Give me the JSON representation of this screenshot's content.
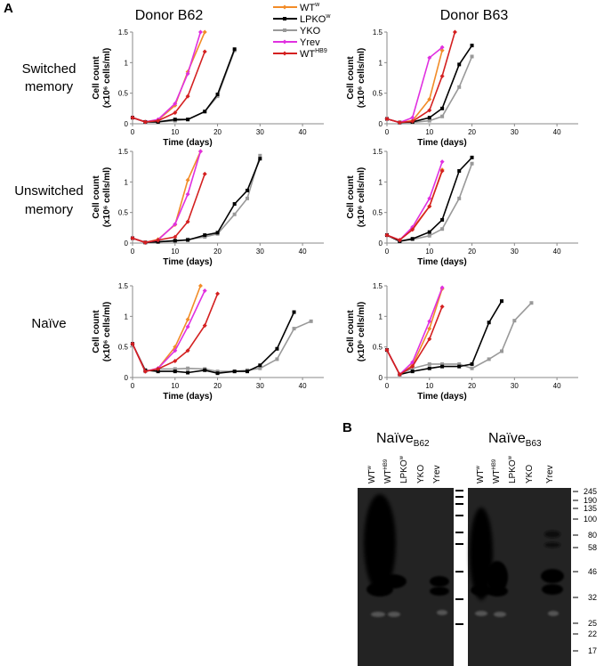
{
  "panel_a_label": "A",
  "panel_b_label": "B",
  "donors": [
    "Donor B62",
    "Donor B63"
  ],
  "row_labels": [
    [
      "Switched",
      "memory"
    ],
    [
      "Unswitched",
      "memory"
    ],
    [
      "Naïve"
    ]
  ],
  "axis": {
    "x_label": "Time (days)",
    "y_label_line1": "Cell count",
    "y_label_line2": "(x10⁶ cells/ml)",
    "x_ticks": [
      "0",
      "10",
      "20",
      "30",
      "40"
    ],
    "y_ticks": [
      "0",
      "0.5",
      "1",
      "1.5"
    ]
  },
  "legend": [
    {
      "base": "WT",
      "sup": "w",
      "color": "#f28c28",
      "marker": "diamond"
    },
    {
      "base": "LPKO",
      "sup": "w",
      "color": "#000000",
      "marker": "square"
    },
    {
      "base": "YKO",
      "sup": "",
      "color": "#999999",
      "marker": "square"
    },
    {
      "base": "Yrev",
      "sup": "",
      "color": "#e030e0",
      "marker": "diamond"
    },
    {
      "base": "WT",
      "sup": "HB9",
      "color": "#d42020",
      "marker": "diamond"
    }
  ],
  "chart_data": [
    {
      "type": "line",
      "title": "Switched memory — Donor B62",
      "xlabel": "Time (days)",
      "ylabel": "Cell count (x10⁶ cells/ml)",
      "xlim": [
        0,
        45
      ],
      "ylim": [
        0,
        1.5
      ],
      "series": [
        {
          "name": "WTw",
          "x": [
            0,
            3,
            6,
            10,
            13,
            17
          ],
          "y": [
            0.1,
            0.03,
            0.06,
            0.3,
            0.85,
            1.5
          ]
        },
        {
          "name": "LPKOw",
          "x": [
            0,
            3,
            6,
            10,
            13,
            17,
            20,
            24
          ],
          "y": [
            0.1,
            0.03,
            0.03,
            0.07,
            0.07,
            0.2,
            0.48,
            1.22
          ]
        },
        {
          "name": "YKO",
          "x": [
            0,
            3,
            6,
            10,
            13,
            17,
            20,
            24
          ],
          "y": [
            0.1,
            0.03,
            0.03,
            0.05,
            0.07,
            0.2,
            0.45,
            1.2
          ]
        },
        {
          "name": "Yrev",
          "x": [
            0,
            3,
            6,
            10,
            13,
            16
          ],
          "y": [
            0.1,
            0.03,
            0.07,
            0.33,
            0.82,
            1.5
          ]
        },
        {
          "name": "WTHB9",
          "x": [
            0,
            3,
            6,
            10,
            13,
            17
          ],
          "y": [
            0.1,
            0.03,
            0.05,
            0.18,
            0.45,
            1.18
          ]
        }
      ]
    },
    {
      "type": "line",
      "title": "Switched memory — Donor B63",
      "xlabel": "Time (days)",
      "ylabel": "Cell count (x10⁶ cells/ml)",
      "xlim": [
        0,
        45
      ],
      "ylim": [
        0,
        1.5
      ],
      "series": [
        {
          "name": "WTw",
          "x": [
            0,
            3,
            6,
            10,
            13
          ],
          "y": [
            0.08,
            0.02,
            0.05,
            0.4,
            1.2
          ]
        },
        {
          "name": "LPKOw",
          "x": [
            0,
            3,
            6,
            10,
            13,
            17,
            20
          ],
          "y": [
            0.08,
            0.02,
            0.03,
            0.1,
            0.25,
            0.97,
            1.28
          ]
        },
        {
          "name": "YKO",
          "x": [
            0,
            3,
            6,
            10,
            13,
            17,
            20
          ],
          "y": [
            0.08,
            0.02,
            0.02,
            0.05,
            0.12,
            0.6,
            1.1
          ]
        },
        {
          "name": "Yrev",
          "x": [
            0,
            3,
            6,
            10,
            13
          ],
          "y": [
            0.08,
            0.02,
            0.1,
            1.08,
            1.25
          ]
        },
        {
          "name": "WTHB9",
          "x": [
            0,
            3,
            6,
            10,
            13,
            16
          ],
          "y": [
            0.08,
            0.02,
            0.04,
            0.22,
            0.78,
            1.5
          ]
        }
      ]
    },
    {
      "type": "line",
      "title": "Unswitched memory — Donor B62",
      "xlabel": "Time (days)",
      "ylabel": "Cell count (x10⁶ cells/ml)",
      "xlim": [
        0,
        45
      ],
      "ylim": [
        0,
        1.5
      ],
      "series": [
        {
          "name": "WTw",
          "x": [
            0,
            3,
            6,
            10,
            13,
            16
          ],
          "y": [
            0.08,
            0.01,
            0.06,
            0.3,
            1.03,
            1.5
          ]
        },
        {
          "name": "LPKOw",
          "x": [
            0,
            3,
            6,
            10,
            13,
            17,
            20,
            24,
            27,
            30
          ],
          "y": [
            0.08,
            0.01,
            0.02,
            0.04,
            0.05,
            0.13,
            0.17,
            0.64,
            0.86,
            1.38
          ]
        },
        {
          "name": "YKO",
          "x": [
            0,
            3,
            6,
            10,
            13,
            17,
            20,
            24,
            27,
            30
          ],
          "y": [
            0.08,
            0.01,
            0.02,
            0.03,
            0.06,
            0.1,
            0.15,
            0.47,
            0.73,
            1.43
          ]
        },
        {
          "name": "Yrev",
          "x": [
            0,
            3,
            6,
            10,
            13,
            16
          ],
          "y": [
            0.08,
            0.01,
            0.05,
            0.31,
            0.8,
            1.5
          ]
        },
        {
          "name": "WTHB9",
          "x": [
            0,
            3,
            6,
            10,
            13,
            17
          ],
          "y": [
            0.08,
            0.01,
            0.05,
            0.1,
            0.35,
            1.13
          ]
        }
      ]
    },
    {
      "type": "line",
      "title": "Unswitched memory — Donor B63",
      "xlabel": "Time (days)",
      "ylabel": "Cell count (x10⁶ cells/ml)",
      "xlim": [
        0,
        45
      ],
      "ylim": [
        0,
        1.5
      ],
      "series": [
        {
          "name": "WTw",
          "x": [
            0,
            3,
            6,
            10,
            13
          ],
          "y": [
            0.13,
            0.05,
            0.24,
            0.6,
            1.2
          ]
        },
        {
          "name": "LPKOw",
          "x": [
            0,
            3,
            6,
            10,
            13,
            17,
            20
          ],
          "y": [
            0.13,
            0.03,
            0.07,
            0.18,
            0.38,
            1.18,
            1.4
          ]
        },
        {
          "name": "YKO",
          "x": [
            0,
            3,
            6,
            10,
            13,
            17,
            20
          ],
          "y": [
            0.13,
            0.03,
            0.06,
            0.12,
            0.23,
            0.73,
            1.3
          ]
        },
        {
          "name": "Yrev",
          "x": [
            0,
            3,
            6,
            10,
            13
          ],
          "y": [
            0.13,
            0.05,
            0.26,
            0.73,
            1.33
          ]
        },
        {
          "name": "WTHB9",
          "x": [
            0,
            3,
            6,
            10,
            13
          ],
          "y": [
            0.13,
            0.05,
            0.22,
            0.6,
            1.18
          ]
        }
      ]
    },
    {
      "type": "line",
      "title": "Naïve — Donor B62",
      "xlabel": "Time (days)",
      "ylabel": "Cell count (x10⁶ cells/ml)",
      "xlim": [
        0,
        45
      ],
      "ylim": [
        0,
        1.5
      ],
      "series": [
        {
          "name": "WTw",
          "x": [
            0,
            3,
            6,
            10,
            13,
            16
          ],
          "y": [
            0.55,
            0.1,
            0.15,
            0.5,
            0.95,
            1.5
          ]
        },
        {
          "name": "LPKOw",
          "x": [
            0,
            3,
            6,
            10,
            13,
            17,
            20,
            24,
            27,
            30,
            34,
            38
          ],
          "y": [
            0.55,
            0.12,
            0.1,
            0.1,
            0.08,
            0.12,
            0.07,
            0.1,
            0.1,
            0.2,
            0.47,
            1.07
          ]
        },
        {
          "name": "YKO",
          "x": [
            0,
            3,
            6,
            10,
            13,
            17,
            20,
            24,
            27,
            30,
            34,
            38,
            42
          ],
          "y": [
            0.55,
            0.1,
            0.14,
            0.14,
            0.15,
            0.14,
            0.1,
            0.1,
            0.12,
            0.15,
            0.3,
            0.8,
            0.92
          ]
        },
        {
          "name": "Yrev",
          "x": [
            0,
            3,
            6,
            10,
            13,
            17
          ],
          "y": [
            0.55,
            0.1,
            0.15,
            0.44,
            0.83,
            1.42
          ]
        },
        {
          "name": "WTHB9",
          "x": [
            0,
            3,
            6,
            10,
            13,
            17,
            20
          ],
          "y": [
            0.55,
            0.1,
            0.14,
            0.27,
            0.44,
            0.85,
            1.37
          ]
        }
      ]
    },
    {
      "type": "line",
      "title": "Naïve — Donor B63",
      "xlabel": "Time (days)",
      "ylabel": "Cell count (x10⁶ cells/ml)",
      "xlim": [
        0,
        45
      ],
      "ylim": [
        0,
        1.5
      ],
      "series": [
        {
          "name": "WTw",
          "x": [
            0,
            3,
            6,
            10,
            13
          ],
          "y": [
            0.45,
            0.05,
            0.2,
            0.8,
            1.45
          ]
        },
        {
          "name": "LPKOw",
          "x": [
            0,
            3,
            6,
            10,
            13,
            17,
            20,
            24,
            27
          ],
          "y": [
            0.45,
            0.05,
            0.1,
            0.15,
            0.18,
            0.18,
            0.22,
            0.9,
            1.25
          ]
        },
        {
          "name": "YKO",
          "x": [
            0,
            3,
            6,
            10,
            13,
            17,
            20,
            24,
            27,
            30,
            34
          ],
          "y": [
            0.45,
            0.05,
            0.15,
            0.22,
            0.22,
            0.22,
            0.15,
            0.3,
            0.43,
            0.93,
            1.22
          ]
        },
        {
          "name": "Yrev",
          "x": [
            0,
            3,
            6,
            10,
            13
          ],
          "y": [
            0.45,
            0.05,
            0.25,
            0.92,
            1.47
          ]
        },
        {
          "name": "WTHB9",
          "x": [
            0,
            3,
            6,
            10,
            13
          ],
          "y": [
            0.45,
            0.05,
            0.18,
            0.63,
            1.16
          ]
        }
      ]
    }
  ],
  "western": {
    "title_left": {
      "base": "Naïve",
      "sub": "B62"
    },
    "title_right": {
      "base": "Naïve",
      "sub": "B63"
    },
    "lanes": [
      {
        "base": "WT",
        "sup": "w"
      },
      {
        "base": "WT",
        "sup": "HB9"
      },
      {
        "base": "LPKO",
        "sup": "w"
      },
      {
        "base": "YKO",
        "sup": ""
      },
      {
        "base": "Yrev",
        "sup": ""
      }
    ],
    "mw_markers": [
      "245",
      "190",
      "135",
      "100",
      "80",
      "58",
      "46",
      "32",
      "25",
      "22",
      "17"
    ]
  }
}
